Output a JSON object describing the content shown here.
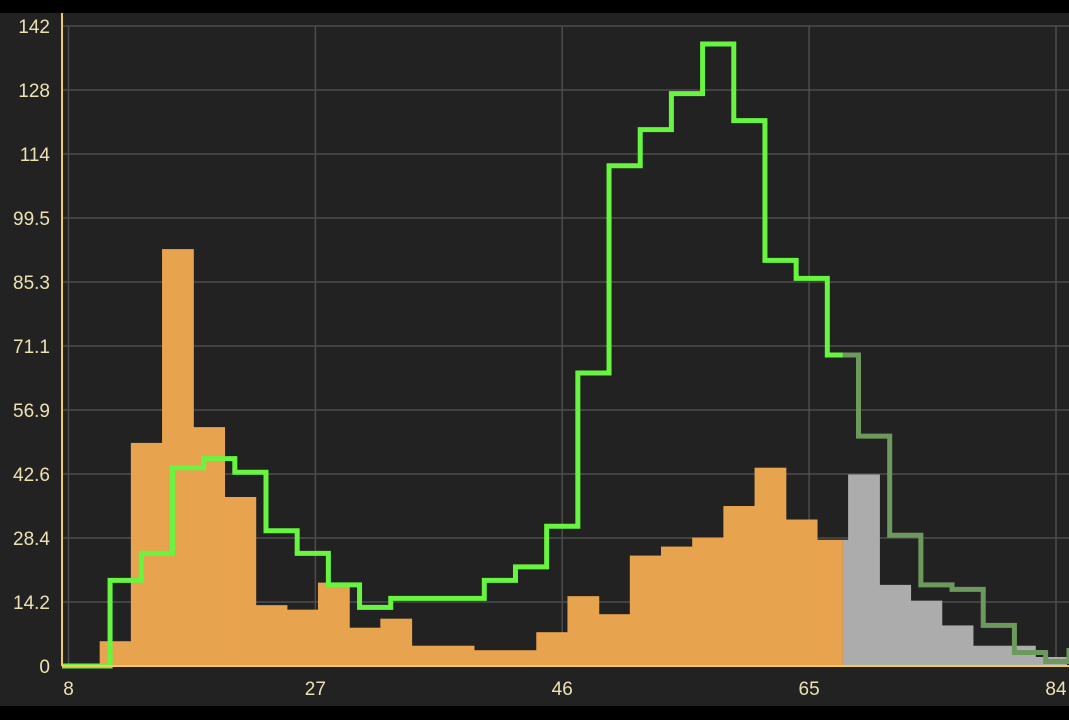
{
  "chart_data": {
    "type": "bar",
    "title": "",
    "xlabel": "",
    "ylabel": "",
    "xlim": [
      7.5,
      85.0
    ],
    "ylim": [
      0,
      142
    ],
    "x_ticks": [
      "8",
      "27",
      "46",
      "65",
      "84"
    ],
    "y_ticks": [
      "0",
      "14.2",
      "28.4",
      "42.6",
      "56.9",
      "71.1",
      "85.3",
      "99.5",
      "114",
      "128",
      "142"
    ],
    "grid": true,
    "bin_width": 2.4,
    "highlight_end": 67.6,
    "bar_edges": [
      10.4,
      12.8,
      15.2,
      17.6,
      20.0,
      22.4,
      24.8,
      27.2,
      29.6,
      32.0,
      34.4,
      36.8,
      39.2,
      41.6,
      44.0,
      46.4,
      48.8,
      51.2,
      53.6,
      56.0,
      58.4,
      60.8,
      63.2,
      65.6,
      68.0,
      70.4,
      72.8,
      75.2,
      77.6,
      80.0,
      82.4,
      84.8
    ],
    "bar_values": [
      5.5,
      49.5,
      92.5,
      53.0,
      37.5,
      13.5,
      12.5,
      18.5,
      8.5,
      10.5,
      4.5,
      4.5,
      3.5,
      3.5,
      7.5,
      15.5,
      11.5,
      24.5,
      26.5,
      28.5,
      35.5,
      44.0,
      32.5,
      28.0,
      42.5,
      18.0,
      14.5,
      9.0,
      4.5,
      4.5,
      2.0,
      3.5
    ],
    "series": [
      {
        "type": "step",
        "edges": [
          7.5,
          11.2,
          13.6,
          16.0,
          18.4,
          20.8,
          23.2,
          25.6,
          28.0,
          30.4,
          32.8,
          35.2,
          37.6,
          40.0,
          42.4,
          44.8,
          47.2,
          49.6,
          52.0,
          54.4,
          56.8,
          59.2,
          61.6,
          64.0,
          66.4,
          68.8,
          71.2,
          73.6,
          76.0,
          78.4,
          80.8,
          83.2,
          85.0
        ],
        "values": [
          0,
          19,
          25,
          44,
          46,
          43,
          30,
          25,
          18,
          13,
          15,
          15,
          15,
          19,
          22,
          31,
          65,
          111,
          119,
          127,
          138,
          121,
          90,
          86,
          69,
          51,
          29,
          18,
          17,
          9,
          3,
          1,
          4
        ]
      }
    ],
    "colors": {
      "background": "#222222",
      "grid": "#4c4c4c",
      "axis": "#f2c95d",
      "tick_text": "#ede1b4",
      "bars": "#e8a34e",
      "bars_beyond": "#acacac",
      "line": "#68f53f",
      "line_beyond": "#6b9a5c"
    }
  }
}
